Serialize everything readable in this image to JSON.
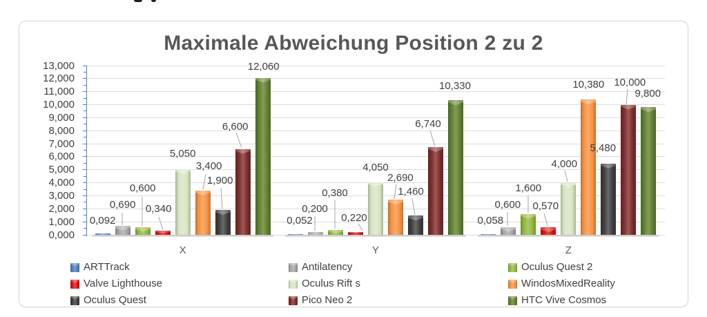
{
  "chart_data": {
    "type": "bar",
    "title": "Maximale Abweichung Position 2 zu 2",
    "categories": [
      "X",
      "Y",
      "Z"
    ],
    "series": [
      {
        "name": "ARTTrack",
        "color": "#4f81bd",
        "values": [
          0.092,
          0.052,
          0.058
        ],
        "labels": [
          "0,092",
          "0,052",
          "0,058"
        ]
      },
      {
        "name": "Antilatency",
        "color": "#a6a6a6",
        "values": [
          0.69,
          0.2,
          0.6
        ],
        "labels": [
          "0,690",
          "0,200",
          "0,600"
        ]
      },
      {
        "name": "Oculus Quest 2",
        "color": "#94b83e",
        "values": [
          0.6,
          0.38,
          1.6
        ],
        "labels": [
          "0,600",
          "0,380",
          "1,600"
        ]
      },
      {
        "name": "Valve Lighthouse",
        "color": "#d81414",
        "values": [
          0.34,
          0.22,
          0.57
        ],
        "labels": [
          "0,340",
          "0,220",
          "0,570"
        ]
      },
      {
        "name": "Oculus Rift s",
        "color": "#d8e4c2",
        "values": [
          5.05,
          4.05,
          4.0
        ],
        "labels": [
          "5,050",
          "4,050",
          "4,000"
        ]
      },
      {
        "name": "WindosMixedReality",
        "color": "#f79243",
        "values": [
          3.4,
          2.69,
          10.38
        ],
        "labels": [
          "3,400",
          "2,690",
          "10,380"
        ]
      },
      {
        "name": "Oculus Quest",
        "color": "#3f3f3f",
        "values": [
          1.9,
          1.46,
          5.48
        ],
        "labels": [
          "1,900",
          "1,460",
          "5,480"
        ]
      },
      {
        "name": "Pico Neo 2",
        "color": "#7e2d2b",
        "values": [
          6.6,
          6.74,
          10.0
        ],
        "labels": [
          "6,600",
          "6,740",
          "10,000"
        ]
      },
      {
        "name": "HTC Vive Cosmos",
        "color": "#62802e",
        "values": [
          12.06,
          10.33,
          9.8
        ],
        "labels": [
          "12,060",
          "10,330",
          "9,800"
        ]
      }
    ],
    "ylim": [
      0,
      13
    ],
    "ytick_labels": [
      "0,000",
      "1,000",
      "2,000",
      "3,000",
      "4,000",
      "5,000",
      "6,000",
      "7,000",
      "8,000",
      "9,000",
      "10,000",
      "11,000",
      "12,000",
      "13,000"
    ],
    "grid": true,
    "legend_position": "bottom"
  }
}
